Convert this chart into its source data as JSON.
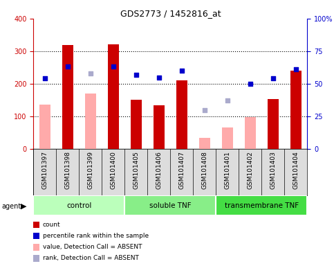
{
  "title": "GDS2773 / 1452816_at",
  "samples": [
    "GSM101397",
    "GSM101398",
    "GSM101399",
    "GSM101400",
    "GSM101405",
    "GSM101406",
    "GSM101407",
    "GSM101408",
    "GSM101401",
    "GSM101402",
    "GSM101403",
    "GSM101404"
  ],
  "red_bars": [
    0,
    320,
    0,
    322,
    150,
    133,
    210,
    0,
    0,
    0,
    153,
    240
  ],
  "pink_bars": [
    137,
    0,
    170,
    0,
    0,
    0,
    0,
    35,
    65,
    97,
    0,
    0
  ],
  "blue_squares": [
    54,
    63,
    0,
    63,
    57,
    55,
    60,
    0,
    0,
    50,
    54,
    61
  ],
  "lavender_squares": [
    0,
    0,
    58,
    0,
    0,
    0,
    0,
    30,
    37,
    0,
    0,
    0
  ],
  "ylim_left": [
    0,
    400
  ],
  "ylim_right": [
    0,
    100
  ],
  "yticks_left": [
    0,
    100,
    200,
    300,
    400
  ],
  "yticks_right": [
    0,
    25,
    50,
    75,
    100
  ],
  "yticklabels_right": [
    "0",
    "25",
    "50",
    "75",
    "100%"
  ],
  "left_axis_color": "#cc0000",
  "right_axis_color": "#0000cc",
  "group_starts": [
    0,
    4,
    8
  ],
  "group_ends": [
    4,
    8,
    12
  ],
  "group_labels": [
    "control",
    "soluble TNF",
    "transmembrane TNF"
  ],
  "group_colors": [
    "#bbffbb",
    "#88ee88",
    "#44dd44"
  ],
  "legend_colors": [
    "#cc0000",
    "#0000cc",
    "#ffaaaa",
    "#aaaacc"
  ],
  "legend_labels": [
    "count",
    "percentile rank within the sample",
    "value, Detection Call = ABSENT",
    "rank, Detection Call = ABSENT"
  ],
  "agent_label": "agent"
}
